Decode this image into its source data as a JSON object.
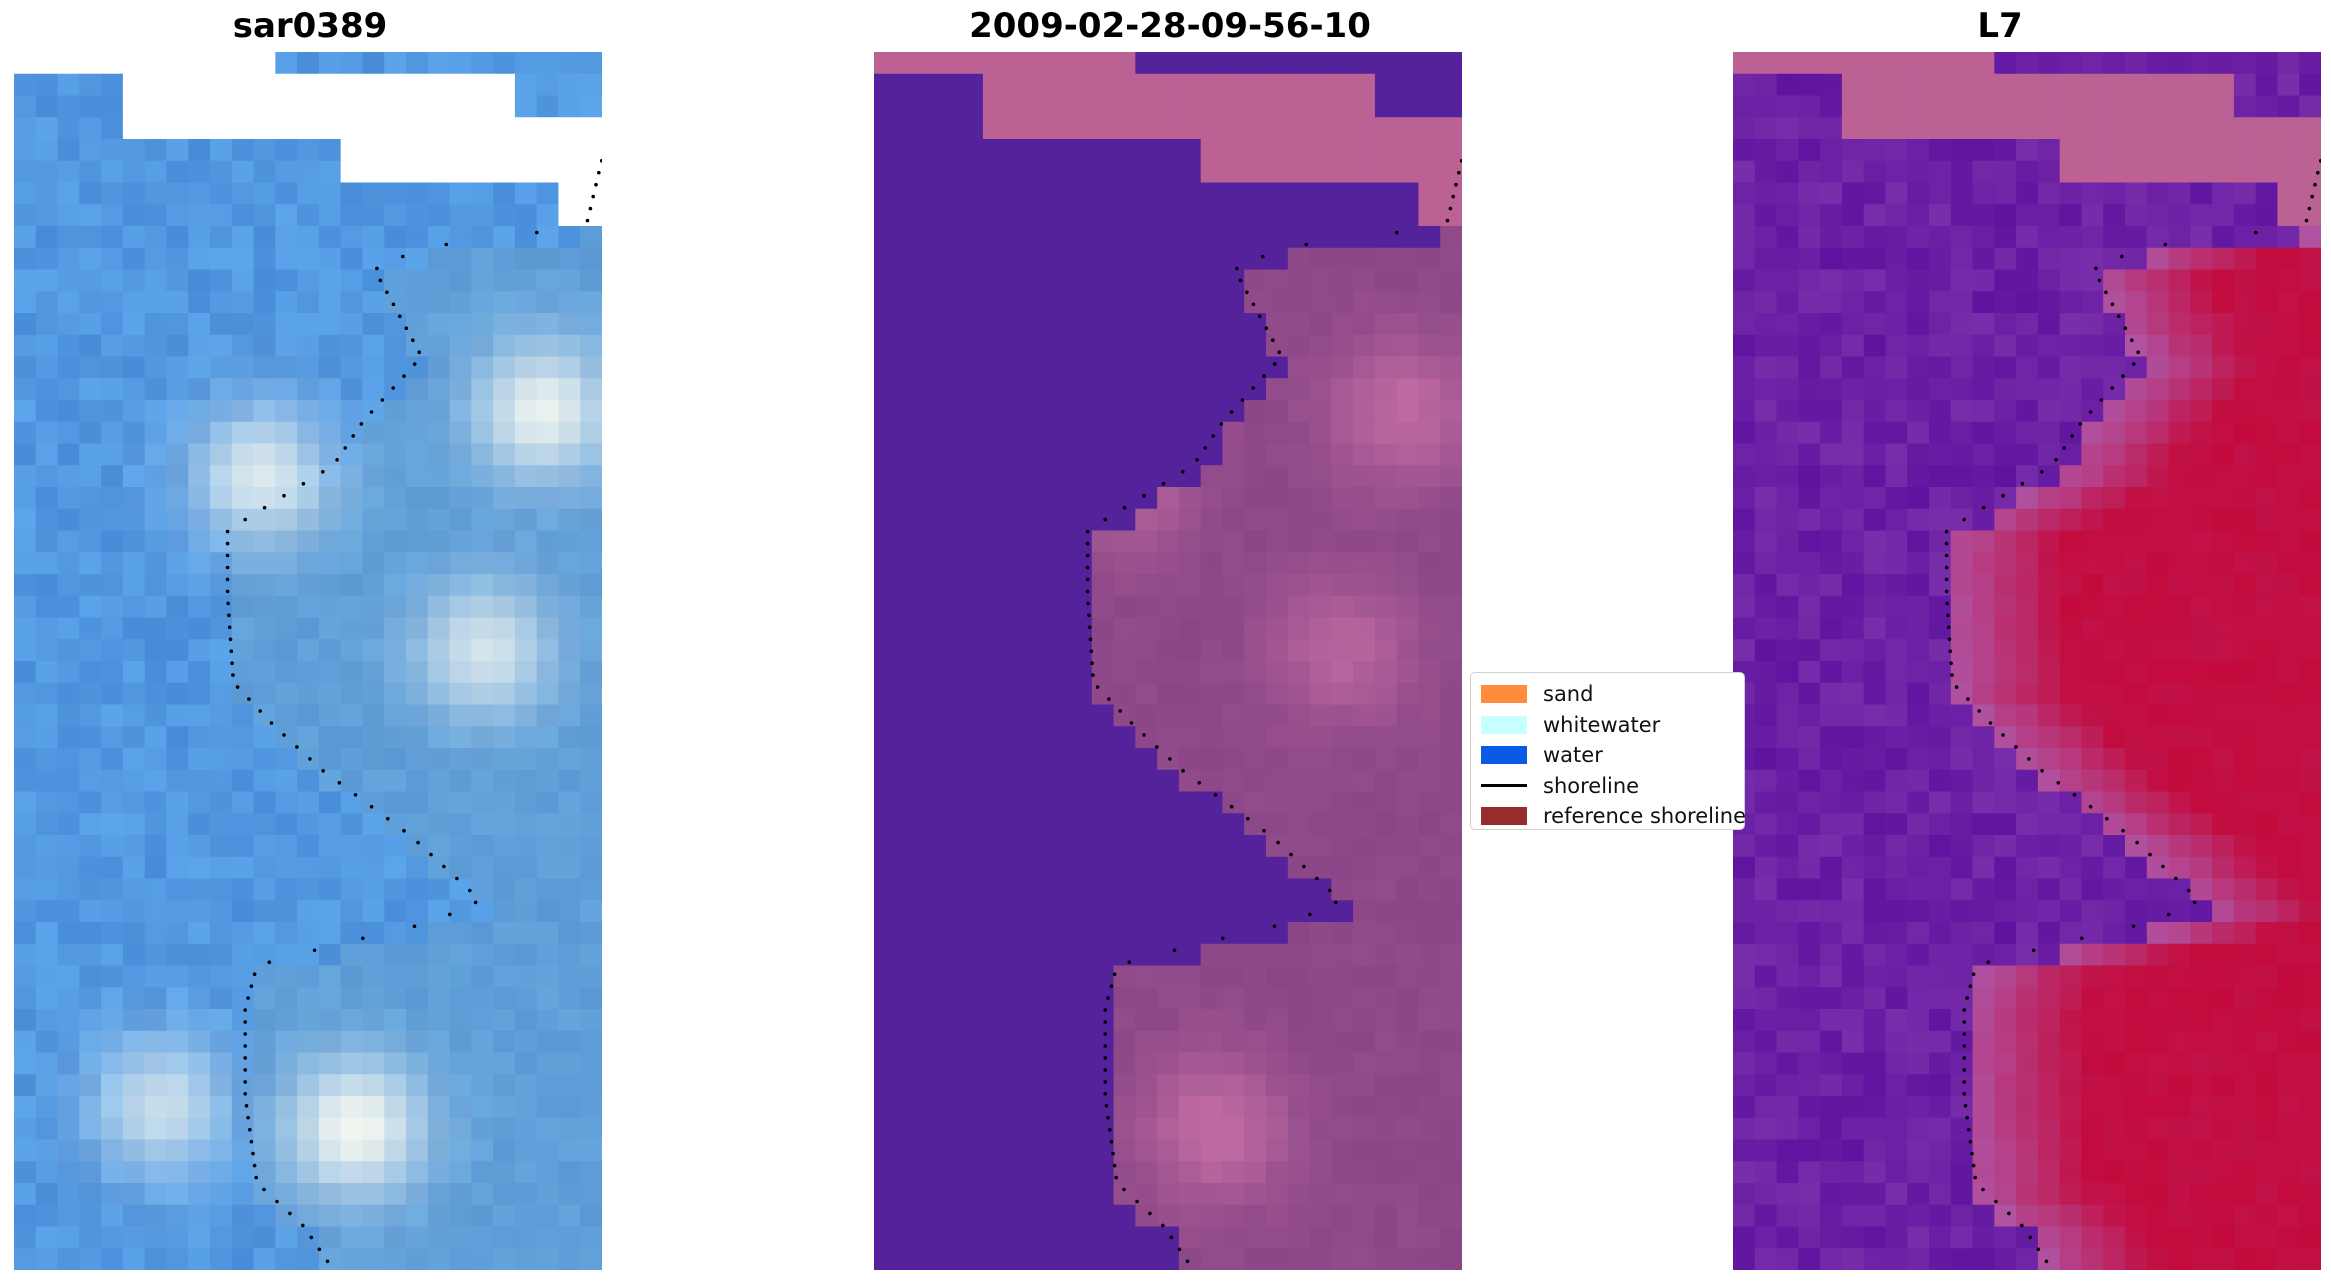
{
  "panels": [
    {
      "id": "rgb",
      "title": "sar0389"
    },
    {
      "id": "classified",
      "title": "2009-02-28-09-56-10"
    },
    {
      "id": "index",
      "title": "L7"
    }
  ],
  "legend": {
    "items": [
      {
        "label": "sand",
        "type": "patch",
        "color": "#ff8c3a"
      },
      {
        "label": "whitewater",
        "type": "patch",
        "color": "#c8ffff"
      },
      {
        "label": "water",
        "type": "patch",
        "color": "#0a5ae6"
      },
      {
        "label": "shoreline",
        "type": "line",
        "color": "#000000"
      },
      {
        "label": "reference shoreline",
        "type": "patch",
        "color": "#962d2d"
      }
    ]
  },
  "colors": {
    "water_class": "#54229a",
    "sand_class_overlay": "#b8628f",
    "nodata_mask": "#bb6194"
  }
}
